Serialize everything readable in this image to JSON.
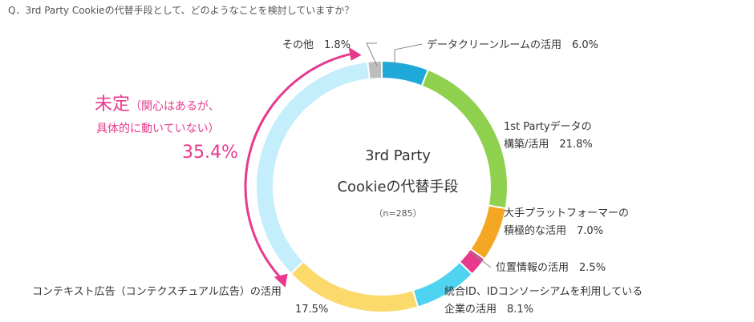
{
  "question": "Q．3rd Party Cookieの代替手段として、どのようなことを検討していますか？",
  "chart_data": {
    "type": "donut",
    "center": {
      "line1": "3rd Party",
      "line2": "Cookieの代替手段",
      "n": "（n=285）"
    },
    "segments": [
      {
        "label": "データクリーンルームの活用",
        "value": 6.0,
        "value_text": "6.0%",
        "color": "#1fa9d9"
      },
      {
        "label": "1st Partyデータの構築/活用",
        "line1": "1st Partyデータの",
        "line2": "構築/活用",
        "value": 21.8,
        "value_text": "21.8%",
        "color": "#8fd14f"
      },
      {
        "label": "大手プラットフォーマーの積極的な活用",
        "line1": "大手プラットフォーマーの",
        "line2": "積極的な活用",
        "value": 7.0,
        "value_text": "7.0%",
        "color": "#f5a623"
      },
      {
        "label": "位置情報の活用",
        "value": 2.5,
        "value_text": "2.5%",
        "color": "#e8398e"
      },
      {
        "label": "統合ID、IDコンソーシアムを利用している企業の活用",
        "line1": "統合ID、IDコンソーシアムを利用している",
        "line2": "企業の活用",
        "value": 8.1,
        "value_text": "8.1%",
        "color": "#4ed3f0"
      },
      {
        "label": "コンテキスト広告（コンテクスチュアル広告）の活用",
        "value": 17.5,
        "value_text": "17.5%",
        "color": "#fcd96b"
      },
      {
        "label": "未定（関心はあるが、具体的に動いていない）",
        "value": 35.4,
        "value_text": "35.4%",
        "color": "#c4eefb"
      },
      {
        "label": "その他",
        "value": 1.8,
        "value_text": "1.8%",
        "color": "#bdbdbd"
      }
    ],
    "undecided_callout": {
      "title": "未定",
      "note1": "（関心はあるが、",
      "note2": "具体的に動いていない）",
      "value_text": "35.4%"
    },
    "callout_color": "#e8398e"
  }
}
